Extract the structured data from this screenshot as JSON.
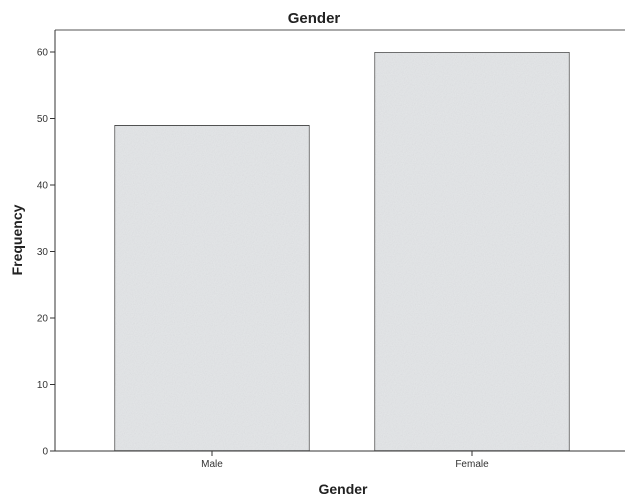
{
  "chart_data": {
    "type": "bar",
    "title": "Gender",
    "xlabel": "Gender",
    "ylabel": "Frequency",
    "categories": [
      "Male",
      "Female"
    ],
    "values": [
      49,
      60
    ],
    "ylim": [
      0,
      65
    ],
    "yticks": [
      0,
      10,
      20,
      30,
      40,
      50,
      60
    ],
    "grid": false,
    "bar_color": "#e4e6e8",
    "bar_edge_color": "#222222"
  }
}
